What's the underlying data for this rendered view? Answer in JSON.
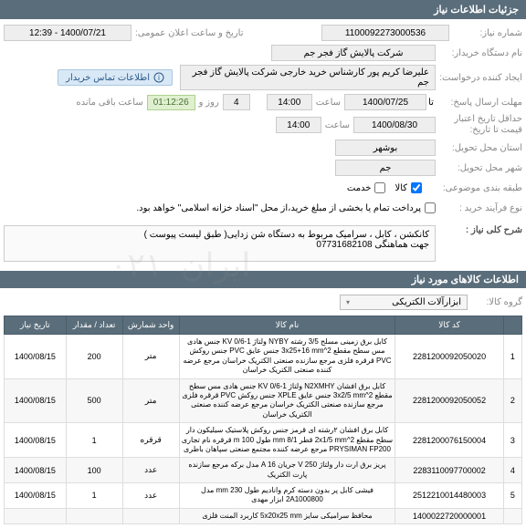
{
  "header": {
    "title": "جزئیات اطلاعات نیاز"
  },
  "fields": {
    "need_no_label": "شماره نیاز:",
    "need_no": "1100092273000536",
    "announce_label": "تاریخ و ساعت اعلان عمومی:",
    "announce_value": "1400/07/21 - 12:39",
    "buyer_label": "نام دستگاه خریدار:",
    "buyer": "شرکت پالایش گاز فجر جم",
    "creator_label": "ایجاد کننده درخواست:",
    "creator": "علیرضا کریم پور کارشناس خرید خارجی شرکت پالایش گاز فجر جم",
    "contact_badge": "اطلاعات تماس خریدار",
    "deadline_send_label": "مهلت ارسال پاسخ:",
    "deadline_send_date": "1400/07/25",
    "time_label": "ساعت",
    "deadline_send_time": "14:00",
    "remain_label": "روز و",
    "remain_days": "4",
    "remain_time": "01:12:26",
    "remain_suffix": "ساعت باقی مانده",
    "validity_label": "حداقل تاریخ اعتبار\nقیمت تا تاریخ:",
    "validity_date": "1400/08/30",
    "validity_time": "14:00",
    "province_label": "استان محل تحویل:",
    "province": "بوشهر",
    "city_label": "شهر محل تحویل:",
    "city": "جم",
    "category_label": "طبقه بندی موضوعی:",
    "category": "کالا/خدمت",
    "process_label": "نوع فرآیند خرید :",
    "process_note": "پرداخت تمام یا بخشی از مبلغ خرید،از محل \"اسناد خزانه اسلامی\" خواهد بود.",
    "cb_goods": "کالا",
    "cb_service": "خدمت"
  },
  "desc": {
    "title": "شرح کلی نیاز :",
    "text": "کانکشن ، کابل ، سرامیک مربوط به دستگاه شن زدایی( طبق لیست پیوست )\nجهت هماهنگی 07731682108"
  },
  "goods_section": {
    "title": "اطلاعات کالاهای مورد نیاز"
  },
  "group": {
    "label": "گروه کالا:",
    "value": "ابزارآلات الکتریکی"
  },
  "table": {
    "headers": {
      "idx": "",
      "code": "کد کالا",
      "name": "نام کالا",
      "unit": "واحد شمارش",
      "qty": "تعداد / مقدار",
      "date": "تاریخ نیاز"
    },
    "rows": [
      {
        "idx": "1",
        "code": "2281200092050020",
        "name": "کابل برق زمینی مسلح 3/5 رشته NYBY ولتاژ KV 0/6-1 جنس هادی مس سطح مقطع 2^3x25+16 mm جنس عایق PVC جنس روکش PVC قرقره فلزی مرجع سازنده صنعتی الکتریک خراسان مرجع عرضه کننده صنعتی الکتریک خراسان",
        "unit": "متر",
        "qty": "200",
        "date": "1400/08/15"
      },
      {
        "idx": "2",
        "code": "2281200092050052",
        "name": "کابل برق افشان N2XMHY ولتاژ KV 0/6-1 جنس هادی مس سطح مقطع 2^3x2/5 mm جنس عایق XPLE جنس روکش PVC قرقره فلزی مرجع سازنده صنعتی الکتریک خراسان مرجع عرضه کننده صنعتی الکتریک خراسان",
        "unit": "متر",
        "qty": "500",
        "date": "1400/08/15"
      },
      {
        "idx": "3",
        "code": "2281200076150004",
        "name": "کابل برق افشان ۲رشته ای قرمز جنس روکش پلاستیک سیلیکون دار سطح مقطع 2^2x1/5 mm قطر mm 8/1 طول m 100 قرقره نام تجاری PRYSIMAN FP200 مرجع عرضه کننده مجتمع صنعتی سپاهان باطری",
        "unit": "قرقره",
        "qty": "1",
        "date": "1400/08/15"
      },
      {
        "idx": "4",
        "code": "2283110097700002",
        "name": "پریز برق ارت دار ولتاژ V 250 جریان A 16 مدل برکه مرجع سازنده پارت الکتریک",
        "unit": "عدد",
        "qty": "100",
        "date": "1400/08/15"
      },
      {
        "idx": "5",
        "code": "2512210014480003",
        "name": "فیشی کابل پر بدون دسته کرم وانادیم طول mm 230 مدل 2A1000800 ابزار مهدی",
        "unit": "عدد",
        "qty": "1",
        "date": "1400/08/15"
      },
      {
        "idx": "",
        "code": "1400022720000001",
        "name": "محافظ سرامیکی سایز 5x20x25 mm کاربرد المنت فلزی",
        "unit": "",
        "qty": "",
        "date": ""
      }
    ]
  },
  "colors": {
    "header_bg": "#5a6d7a",
    "value_bg": "#eeeeee",
    "info_bg": "#d9e8f5",
    "timer_bg": "#dff0d0"
  }
}
